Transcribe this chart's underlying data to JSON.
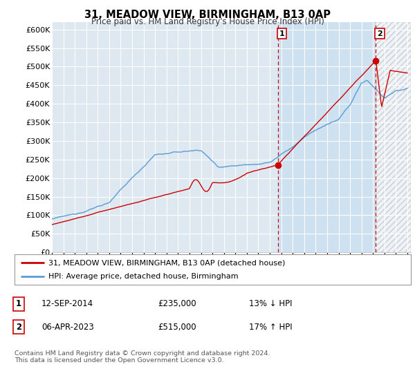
{
  "title": "31, MEADOW VIEW, BIRMINGHAM, B13 0AP",
  "subtitle": "Price paid vs. HM Land Registry's House Price Index (HPI)",
  "hpi_color": "#5b9bd5",
  "price_color": "#cc0000",
  "marker_color": "#cc0000",
  "bg_color": "#dde8f0",
  "grid_color": "#ffffff",
  "highlight_color": "#c8dff0",
  "ylim": [
    0,
    620000
  ],
  "yticks": [
    0,
    50000,
    100000,
    150000,
    200000,
    250000,
    300000,
    350000,
    400000,
    450000,
    500000,
    550000,
    600000
  ],
  "legend_label_price": "31, MEADOW VIEW, BIRMINGHAM, B13 0AP (detached house)",
  "legend_label_hpi": "HPI: Average price, detached house, Birmingham",
  "annotation1_label": "1",
  "annotation1_date": "12-SEP-2014",
  "annotation1_price": "£235,000",
  "annotation1_hpi": "13% ↓ HPI",
  "annotation2_label": "2",
  "annotation2_date": "06-APR-2023",
  "annotation2_price": "£515,000",
  "annotation2_hpi": "17% ↑ HPI",
  "footer": "Contains HM Land Registry data © Crown copyright and database right 2024.\nThis data is licensed under the Open Government Licence v3.0.",
  "vline1_x": 2014.7,
  "vline2_x": 2023.25,
  "sale1_x": 2014.7,
  "sale1_y": 235000,
  "sale2_x": 2023.25,
  "sale2_y": 515000,
  "xmin": 1995,
  "xmax": 2026.3
}
